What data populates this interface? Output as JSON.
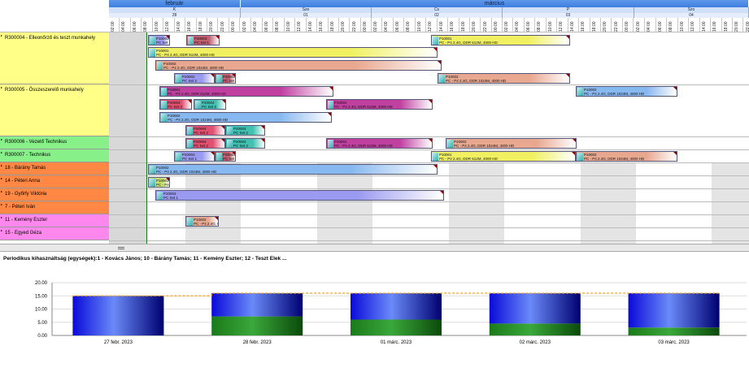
{
  "timeline": {
    "months": [
      "február",
      "március"
    ],
    "days": [
      {
        "label": "K",
        "num": "28"
      },
      {
        "label": "Sze",
        "num": "01"
      },
      {
        "label": "Cs",
        "num": "02"
      },
      {
        "label": "P",
        "num": "03"
      },
      {
        "label": "Szo",
        "num": "04"
      }
    ],
    "hours": [
      "02:00",
      "04:00",
      "06:00",
      "08:00",
      "10:00",
      "12:00",
      "14:00",
      "16:00",
      "18:00",
      "20:00",
      "22:00",
      "00:00"
    ]
  },
  "resources": [
    {
      "name": "R300004 - Elleonőrző és teszt munkahely",
      "color": "#ffff88"
    },
    {
      "name": "R300005 - Összeszerelő munkahely",
      "color": "#ffff88"
    },
    {
      "name": "R300006 - Vezető Technikus",
      "color": "#88f088"
    },
    {
      "name": "R300007 - Technikus",
      "color": "#88f088"
    },
    {
      "name": "18 - Bárány Tamás",
      "color": "#ff8844"
    },
    {
      "name": "14 - Péteri Anna",
      "color": "#ff8844"
    },
    {
      "name": "19 - Győrfy Viktória",
      "color": "#ff8844"
    },
    {
      "name": "7 - Péteri Iván",
      "color": "#ff8844"
    },
    {
      "name": "11 - Kemény Eszter",
      "color": "#ff88ee"
    },
    {
      "name": "15 - Egyed Géza",
      "color": "#ff88ee"
    }
  ],
  "bars": [
    {
      "t1": "P10003",
      "t2": "PC Set 1",
      "color": "#9a9af0"
    },
    {
      "t1": "P20003",
      "t2": "PC Set 1",
      "color": "#c06070"
    },
    {
      "t1": "P10001",
      "t2": "PC - P4 2.4G, DDR 512M, 4000 HD",
      "color": "#f0f060"
    },
    {
      "t1": "P10001",
      "t2": "PC - P4 2.4G, DDR 512M, 4000 HD",
      "color": "#f0f060"
    },
    {
      "t1": "P10002",
      "t2": "PC - P4 2.4G, DDR 1024M, 4000 HD",
      "color": "#e8a890"
    },
    {
      "t1": "P20002",
      "t2": "PC Set 2",
      "color": "#9a9af0"
    },
    {
      "t1": "P20002",
      "t2": "PC Set 2",
      "color": "#c06070"
    },
    {
      "t1": "P10002",
      "t2": "PC - P4 2.4G, DDR 1024M, 4000 HD",
      "color": "#e8a890"
    },
    {
      "t1": "P10001",
      "t2": "PC - P4 2.4G, DDR 512M, 4000 HD",
      "color": "#c040a0"
    },
    {
      "t1": "P10002",
      "t2": "PC - P4 2.4G, DDR 1024M, 4000 HD",
      "color": "#88b8f0"
    },
    {
      "t1": "P20004",
      "t2": "PC Set 2",
      "color": "#e05070"
    },
    {
      "t1": "P20004",
      "t2": "PC Set 2",
      "color": "#40c0b0"
    },
    {
      "t1": "P10001",
      "t2": "PC - P4 2.4G, DDR 512M, 4000 HD",
      "color": "#c040a0"
    },
    {
      "t1": "P10002",
      "t2": "PC - P4 2.4G, DDR 1024M, 4000 HD",
      "color": "#88b8f0"
    },
    {
      "t1": "P20004",
      "t2": "PC Set 2",
      "color": "#e05070"
    },
    {
      "t1": "P20004",
      "t2": "PC Set 2",
      "color": "#40c0b0"
    },
    {
      "t1": "P20004",
      "t2": "PC Set 2",
      "color": "#e05070"
    },
    {
      "t1": "P20004",
      "t2": "PC Set 2",
      "color": "#40c0b0"
    },
    {
      "t1": "P10001",
      "t2": "PC - P4 2.4G, DDR 512M, 4000 HD",
      "color": "#c040a0"
    },
    {
      "t1": "P10002",
      "t2": "PC - P4 2.4G, DDR 1024M, 4000 HD",
      "color": "#e8a890"
    },
    {
      "t1": "P20003",
      "t2": "PC Set 1",
      "color": "#9a9af0"
    },
    {
      "t1": "P20003",
      "t2": "PC Set 1",
      "color": "#c06070"
    },
    {
      "t1": "P10001",
      "t2": "PC - P4 2.4G, DDR 512M, 4000 HD",
      "color": "#f0f060"
    },
    {
      "t1": "P10002",
      "t2": "PC - P4 2.4G, DDR 1024M, 4000 HD",
      "color": "#e8a890"
    },
    {
      "t1": "P10002",
      "t2": "PC - P4 2.4G, DDR 1024M, 4000 HD",
      "color": "#88b8f0"
    },
    {
      "t1": "P10001",
      "t2": "PC - P4 2.4G, DDR 512M, 4000 HD",
      "color": "#c8e070"
    },
    {
      "t1": "P20003",
      "t2": "PC Set 1",
      "color": "#9a9af0"
    },
    {
      "t1": "P10002",
      "t2": "PC - P4 2.4G, DDR 1024M, 4000 HD",
      "color": "#e8a890"
    },
    {
      "t1": "P20003",
      "t2": "PC Set 1",
      "color": "#c06070"
    }
  ],
  "usage_panel": {
    "title": "Periodikus kihasználtság (egységek):1 - Kovács János; 10 - Bárány Tamás; 11 - Kemény Eszter; 12 - Teszt Elek ..."
  },
  "chart_data": {
    "type": "bar",
    "categories": [
      "27 febr. 2023",
      "28 febr. 2023",
      "01 márc. 2023",
      "02 márc. 2023",
      "03 márc. 2023"
    ],
    "ylim": [
      0,
      20
    ],
    "yticks": [
      "0.00",
      "5.00",
      "10.00",
      "15.00",
      "20.00"
    ],
    "series": [
      {
        "values": [
          0,
          7.2,
          6.0,
          4.5,
          3.0
        ],
        "color": "#1a8a1a"
      },
      {
        "values": [
          15.0,
          8.8,
          10.0,
          11.5,
          13.0
        ],
        "color": "#1a1ae0"
      }
    ],
    "capacity": [
      15.0,
      16.0,
      16.0,
      16.0,
      16.0
    ],
    "capacity_color": "#f0a020",
    "grid": true
  },
  "colors": {
    "month_header": "#4d8ce6",
    "week_line": "#1a7a1a",
    "offtime": "#d8d8d8"
  }
}
